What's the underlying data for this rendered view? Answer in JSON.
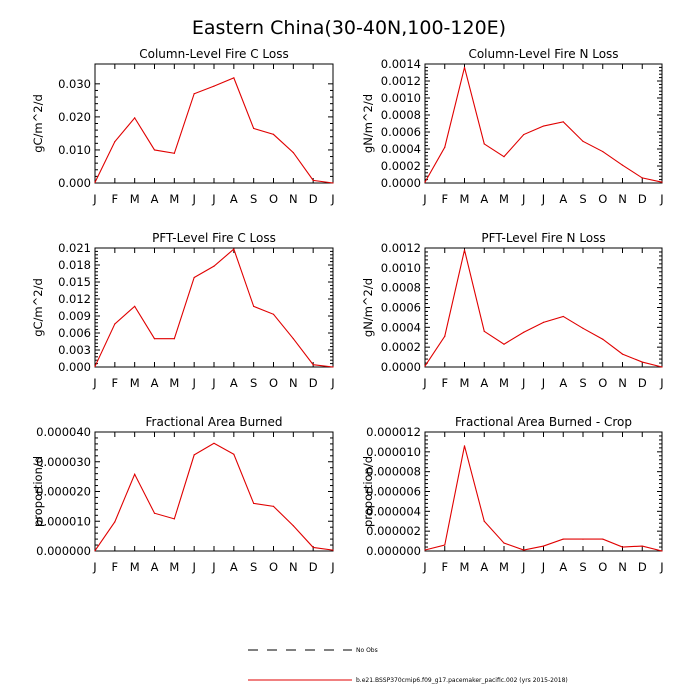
{
  "figure_title": "Eastern China(30-40N,100-120E)",
  "legend": [
    {
      "label": "No Obs",
      "style": "dashed",
      "color": "#000000"
    },
    {
      "label": "b.e21.BSSP370cmip6.f09_g17.pacemaker_pacific.002 (yrs 2015-2018)",
      "style": "solid",
      "color": "#e00000"
    }
  ],
  "chart_data": [
    {
      "type": "line",
      "title": "Column-Level Fire C Loss",
      "xlabel": "",
      "ylabel": "gC/m^2/d",
      "categories": [
        "J",
        "F",
        "M",
        "A",
        "M",
        "J",
        "J",
        "A",
        "S",
        "O",
        "N",
        "D",
        "J"
      ],
      "ylim": [
        0,
        0.036
      ],
      "yticks": [
        "0.000",
        "0.010",
        "0.020",
        "0.030"
      ],
      "ytick_values": [
        0,
        0.01,
        0.02,
        0.03
      ],
      "series": [
        {
          "name": "b.e21.BSSP370cmip6.f09_g17.pacemaker_pacific.002",
          "color": "#e00000",
          "values": [
            0.0002,
            0.0125,
            0.0197,
            0.01,
            0.009,
            0.027,
            0.0293,
            0.0318,
            0.0165,
            0.0147,
            0.0092,
            0.0008,
            0.0
          ]
        }
      ]
    },
    {
      "type": "line",
      "title": "Column-Level Fire N Loss",
      "xlabel": "",
      "ylabel": "gN/m^2/d",
      "categories": [
        "J",
        "F",
        "M",
        "A",
        "M",
        "J",
        "J",
        "A",
        "S",
        "O",
        "N",
        "D",
        "J"
      ],
      "ylim": [
        0,
        0.0014
      ],
      "yticks": [
        "0.0000",
        "0.0002",
        "0.0004",
        "0.0006",
        "0.0008",
        "0.0010",
        "0.0012",
        "0.0014"
      ],
      "ytick_values": [
        0,
        0.0002,
        0.0004,
        0.0006,
        0.0008,
        0.001,
        0.0012,
        0.0014
      ],
      "series": [
        {
          "name": "b.e21.BSSP370cmip6.f09_g17.pacemaker_pacific.002",
          "color": "#e00000",
          "values": [
            1e-05,
            0.00042,
            0.00136,
            0.00046,
            0.00031,
            0.00057,
            0.00067,
            0.00072,
            0.00049,
            0.00037,
            0.00021,
            6e-05,
            1e-05
          ]
        }
      ]
    },
    {
      "type": "line",
      "title": "PFT-Level Fire C Loss",
      "xlabel": "",
      "ylabel": "gC/m^2/d",
      "categories": [
        "J",
        "F",
        "M",
        "A",
        "M",
        "J",
        "J",
        "A",
        "S",
        "O",
        "N",
        "D",
        "J"
      ],
      "ylim": [
        0,
        0.021
      ],
      "yticks": [
        "0.000",
        "0.003",
        "0.006",
        "0.009",
        "0.012",
        "0.015",
        "0.018",
        "0.021"
      ],
      "ytick_values": [
        0,
        0.003,
        0.006,
        0.009,
        0.012,
        0.015,
        0.018,
        0.021
      ],
      "series": [
        {
          "name": "b.e21.BSSP370cmip6.f09_g17.pacemaker_pacific.002",
          "color": "#e00000",
          "values": [
            0.0001,
            0.0076,
            0.0107,
            0.005,
            0.005,
            0.0158,
            0.0178,
            0.0208,
            0.0107,
            0.0093,
            0.005,
            0.0004,
            0.0
          ]
        }
      ]
    },
    {
      "type": "line",
      "title": "PFT-Level Fire N Loss",
      "xlabel": "",
      "ylabel": "gN/m^2/d",
      "categories": [
        "J",
        "F",
        "M",
        "A",
        "M",
        "J",
        "J",
        "A",
        "S",
        "O",
        "N",
        "D",
        "J"
      ],
      "ylim": [
        0,
        0.0012
      ],
      "yticks": [
        "0.0000",
        "0.0002",
        "0.0004",
        "0.0006",
        "0.0008",
        "0.0010",
        "0.0012"
      ],
      "ytick_values": [
        0,
        0.0002,
        0.0004,
        0.0006,
        0.0008,
        0.001,
        0.0012
      ],
      "series": [
        {
          "name": "b.e21.BSSP370cmip6.f09_g17.pacemaker_pacific.002",
          "color": "#e00000",
          "values": [
            1e-05,
            0.00031,
            0.00118,
            0.00036,
            0.00023,
            0.00035,
            0.00045,
            0.00051,
            0.00039,
            0.00028,
            0.00013,
            5e-05,
            0.0
          ]
        }
      ]
    },
    {
      "type": "line",
      "title": "Fractional Area Burned",
      "xlabel": "",
      "ylabel": "proportion/d",
      "categories": [
        "J",
        "F",
        "M",
        "A",
        "M",
        "J",
        "J",
        "A",
        "S",
        "O",
        "N",
        "D",
        "J"
      ],
      "ylim": [
        0,
        4e-05
      ],
      "yticks": [
        "0.000000",
        "0.000010",
        "0.000020",
        "0.000030",
        "0.000040"
      ],
      "ytick_values": [
        0,
        1e-05,
        2e-05,
        3e-05,
        4e-05
      ],
      "series": [
        {
          "name": "b.e21.BSSP370cmip6.f09_g17.pacemaker_pacific.002",
          "color": "#e00000",
          "values": [
            1e-07,
            9.8e-06,
            2.58e-05,
            1.27e-05,
            1.08e-05,
            3.23e-05,
            3.62e-05,
            3.25e-05,
            1.6e-05,
            1.5e-05,
            8.5e-06,
            1.2e-06,
            3e-07
          ]
        }
      ]
    },
    {
      "type": "line",
      "title": "Fractional Area Burned - Crop",
      "xlabel": "",
      "ylabel": "proportion/d",
      "categories": [
        "J",
        "F",
        "M",
        "A",
        "M",
        "J",
        "J",
        "A",
        "S",
        "O",
        "N",
        "D",
        "J"
      ],
      "ylim": [
        0,
        1.2e-05
      ],
      "yticks": [
        "0.000000",
        "0.000002",
        "0.000004",
        "0.000006",
        "0.000008",
        "0.000010",
        "0.000012"
      ],
      "ytick_values": [
        0,
        2e-06,
        4e-06,
        6e-06,
        8e-06,
        1e-05,
        1.2e-05
      ],
      "series": [
        {
          "name": "b.e21.BSSP370cmip6.f09_g17.pacemaker_pacific.002",
          "color": "#e00000",
          "values": [
            1e-07,
            6e-07,
            1.06e-05,
            3e-06,
            8e-07,
            1e-07,
            5e-07,
            1.2e-06,
            1.2e-06,
            1.2e-06,
            4e-07,
            5e-07,
            0.0
          ]
        }
      ]
    }
  ]
}
